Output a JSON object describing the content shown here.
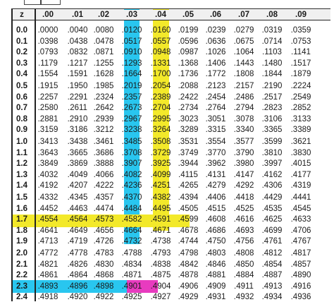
{
  "table": {
    "header": {
      "z": "z",
      "cols": [
        ".00",
        ".01",
        ".02",
        ".03",
        ".04",
        ".05",
        ".06",
        ".07",
        ".08",
        ".09"
      ]
    },
    "rows": [
      {
        "z": "0.0",
        "vals": [
          ".0000",
          ".0040",
          ".0080",
          ".0120",
          ".0160",
          ".0199",
          ".0239",
          ".0279",
          ".0319",
          ".0359"
        ]
      },
      {
        "z": "0.1",
        "vals": [
          ".0398",
          ".0438",
          ".0478",
          ".0517",
          ".0557",
          ".0596",
          ".0636",
          ".0675",
          ".0714",
          ".0753"
        ]
      },
      {
        "z": "0.2",
        "vals": [
          ".0793",
          ".0832",
          ".0871",
          ".0910",
          ".0948",
          ".0987",
          ".1026",
          ".1064",
          ".1103",
          ".1141"
        ]
      },
      {
        "z": "0.3",
        "vals": [
          ".1179",
          ".1217",
          ".1255",
          ".1293",
          ".1331",
          ".1368",
          ".1406",
          ".1443",
          ".1480",
          ".1517"
        ]
      },
      {
        "z": "0.4",
        "vals": [
          ".1554",
          ".1591",
          ".1628",
          ".1664",
          ".1700",
          ".1736",
          ".1772",
          ".1808",
          ".1844",
          ".1879"
        ]
      },
      {
        "z": "0.5",
        "vals": [
          ".1915",
          ".1950",
          ".1985",
          ".2019",
          ".2054",
          ".2088",
          ".2123",
          ".2157",
          ".2190",
          ".2224"
        ]
      },
      {
        "z": "0.6",
        "vals": [
          ".2257",
          ".2291",
          ".2324",
          ".2357",
          ".2389",
          ".2422",
          ".2454",
          ".2486",
          ".2517",
          ".2549"
        ]
      },
      {
        "z": "0.7",
        "vals": [
          ".2580",
          ".2611",
          ".2642",
          ".2673",
          ".2704",
          ".2734",
          ".2764",
          ".2794",
          ".2823",
          ".2852"
        ]
      },
      {
        "z": "0.8",
        "vals": [
          ".2881",
          ".2910",
          ".2939",
          ".2967",
          ".2995",
          ".3023",
          ".3051",
          ".3078",
          ".3106",
          ".3133"
        ]
      },
      {
        "z": "0.9",
        "vals": [
          ".3159",
          ".3186",
          ".3212",
          ".3238",
          ".3264",
          ".3289",
          ".3315",
          ".3340",
          ".3365",
          ".3389"
        ]
      },
      {
        "z": "1.0",
        "vals": [
          ".3413",
          ".3438",
          ".3461",
          ".3485",
          ".3508",
          ".3531",
          ".3554",
          ".3577",
          ".3599",
          ".3621"
        ]
      },
      {
        "z": "1.1",
        "vals": [
          ".3643",
          ".3665",
          ".3686",
          ".3708",
          ".3729",
          ".3749",
          ".3770",
          ".3790",
          ".3810",
          ".3830"
        ]
      },
      {
        "z": "1.2",
        "vals": [
          ".3849",
          ".3869",
          ".3888",
          ".3907",
          ".3925",
          ".3944",
          ".3962",
          ".3980",
          ".3997",
          ".4015"
        ]
      },
      {
        "z": "1.3",
        "vals": [
          ".4032",
          ".4049",
          ".4066",
          ".4082",
          ".4099",
          ".4115",
          ".4131",
          ".4147",
          ".4162",
          ".4177"
        ]
      },
      {
        "z": "1.4",
        "vals": [
          ".4192",
          ".4207",
          ".4222",
          ".4236",
          ".4251",
          ".4265",
          ".4279",
          ".4292",
          ".4306",
          ".4319"
        ]
      },
      {
        "z": "1.5",
        "vals": [
          ".4332",
          ".4345",
          ".4357",
          ".4370",
          ".4382",
          ".4394",
          ".4406",
          ".4418",
          ".4429",
          ".4441"
        ]
      },
      {
        "z": "1.6",
        "vals": [
          ".4452",
          ".4463",
          ".4474",
          ".4484",
          ".4495",
          ".4505",
          ".4515",
          ".4525",
          ".4535",
          ".4545"
        ]
      },
      {
        "z": "1.7",
        "vals": [
          ".4554",
          ".4564",
          ".4573",
          ".4582",
          ".4591",
          ".4599",
          ".4608",
          ".4616",
          ".4625",
          ".4633"
        ]
      },
      {
        "z": "1.8",
        "vals": [
          ".4641",
          ".4649",
          ".4656",
          ".4664",
          ".4671",
          ".4678",
          ".4686",
          ".4693",
          ".4699",
          ".4706"
        ]
      },
      {
        "z": "1.9",
        "vals": [
          ".4713",
          ".4719",
          ".4726",
          ".4732",
          ".4738",
          ".4744",
          ".4750",
          ".4756",
          ".4761",
          ".4767"
        ]
      },
      {
        "z": "2.0",
        "vals": [
          ".4772",
          ".4778",
          ".4783",
          ".4788",
          ".4793",
          ".4798",
          ".4803",
          ".4808",
          ".4812",
          ".4817"
        ]
      },
      {
        "z": "2.1",
        "vals": [
          ".4821",
          ".4826",
          ".4830",
          ".4834",
          ".4838",
          ".4842",
          ".4846",
          ".4850",
          ".4854",
          ".4857"
        ]
      },
      {
        "z": "2.2",
        "vals": [
          ".4861",
          ".4864",
          ".4868",
          ".4871",
          ".4875",
          ".4878",
          ".4881",
          ".4884",
          ".4887",
          ".4890"
        ]
      },
      {
        "z": "2.3",
        "vals": [
          ".4893",
          ".4896",
          ".4898",
          ".4901",
          ".4904",
          ".4906",
          ".4909",
          ".4911",
          ".4913",
          ".4916"
        ]
      },
      {
        "z": "2.4",
        "vals": [
          ".4918",
          ".4920",
          ".4922",
          ".4925",
          ".4927",
          ".4929",
          ".4931",
          ".4932",
          ".4934",
          ".4936"
        ]
      }
    ]
  },
  "highlights": {
    "column_003": "#29c6ef",
    "column_004": "#f3e92a",
    "row_1_8": "#f3e92a",
    "row_2_4": "#29c6ef",
    "cell_2_4_003": "#e83bbf"
  }
}
